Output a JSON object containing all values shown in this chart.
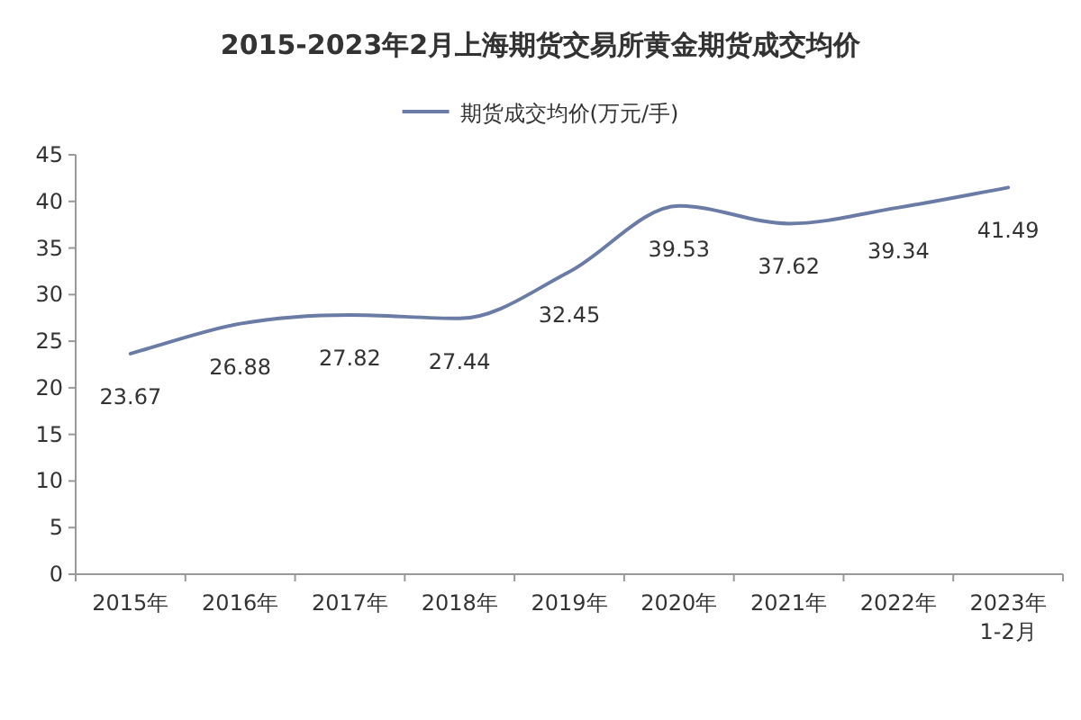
{
  "chart_data": {
    "type": "line",
    "title": "2015-2023年2月上海期货交易所黄金期货成交均价",
    "categories": [
      "2015年",
      "2016年",
      "2017年",
      "2018年",
      "2019年",
      "2020年",
      "2021年",
      "2022年",
      "2023年\n1-2月"
    ],
    "series": [
      {
        "name": "期货成交均价(万元/手)",
        "color": "#6a7ba6",
        "values": [
          23.67,
          26.88,
          27.82,
          27.44,
          32.45,
          39.53,
          37.62,
          39.34,
          41.49
        ]
      }
    ],
    "ylim": [
      0,
      45
    ],
    "yticks": [
      0,
      5,
      10,
      15,
      20,
      25,
      30,
      35,
      40,
      45
    ],
    "data_labels": true,
    "legend": "top",
    "grid": false,
    "marker": "none",
    "line_style": "solid"
  }
}
